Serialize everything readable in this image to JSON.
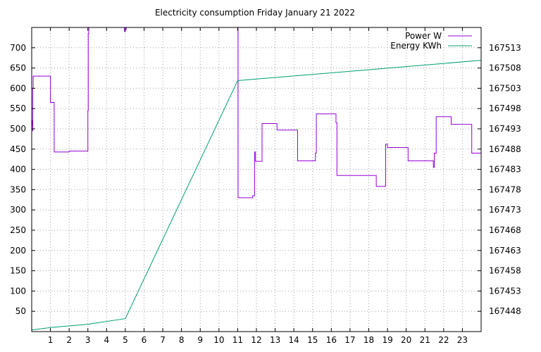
{
  "chart_data": {
    "type": "line",
    "title": "Electricity consumption Friday January 21 2022",
    "xlabel": "",
    "ylabel": "",
    "y2label": "",
    "xlim": [
      0,
      24
    ],
    "ylim": [
      0,
      750
    ],
    "y2lim": [
      167443,
      167518
    ],
    "grid": true,
    "legend_position": "top-right",
    "x_ticks": [
      1,
      2,
      3,
      4,
      5,
      6,
      7,
      8,
      9,
      10,
      11,
      12,
      13,
      14,
      15,
      16,
      17,
      18,
      19,
      20,
      21,
      22,
      23
    ],
    "x_tick_labels": [
      "1",
      "2",
      "3",
      "4",
      "5",
      "6",
      "7",
      "8",
      "9",
      "10",
      "11",
      "12",
      "13",
      "14",
      "15",
      "16",
      "17",
      "18",
      "19",
      "20",
      "21",
      "22",
      "23"
    ],
    "y_ticks": [
      50,
      100,
      150,
      200,
      250,
      300,
      350,
      400,
      450,
      500,
      550,
      600,
      650,
      700
    ],
    "y_tick_labels": [
      "50",
      "100",
      "150",
      "200",
      "250",
      "300",
      "350",
      "400",
      "450",
      "500",
      "550",
      "600",
      "650",
      "700"
    ],
    "y2_ticks": [
      167448,
      167453,
      167458,
      167463,
      167468,
      167473,
      167478,
      167483,
      167488,
      167493,
      167498,
      167503,
      167508,
      167513
    ],
    "y2_tick_labels": [
      "167448",
      "167453",
      "167458",
      "167463",
      "167468",
      "167473",
      "167478",
      "167483",
      "167488",
      "167493",
      "167498",
      "167503",
      "167508",
      "167513"
    ],
    "series": [
      {
        "name": "Power W",
        "axis": "y",
        "color": "#9400d3",
        "step": true,
        "x": [
          0,
          0.04,
          0.05,
          0.06,
          0.08,
          0.1,
          0.95,
          1.0,
          1.2,
          1.95,
          2.0,
          2.98,
          3.0,
          3.02,
          3.05,
          3.07,
          4.95,
          5.0,
          5.05,
          11.0,
          11.02,
          11.05,
          11.7,
          11.8,
          11.9,
          11.95,
          12.2,
          12.3,
          13.0,
          13.1,
          14.1,
          14.2,
          15.1,
          15.15,
          15.2,
          16.2,
          16.25,
          16.3,
          17.5,
          17.6,
          18.4,
          18.5,
          18.9,
          19.0,
          20.0,
          20.1,
          21.2,
          21.3,
          21.45,
          21.5,
          21.6,
          22.3,
          22.4,
          23.4,
          23.5,
          23.99
        ],
        "y": [
          520,
          510,
          495,
          600,
          630,
          630,
          630,
          565,
          443,
          443,
          445,
          445,
          545,
          735,
          750,
          750,
          740,
          745,
          750,
          750,
          330,
          330,
          330,
          335,
          443,
          420,
          420,
          513,
          513,
          497,
          497,
          421,
          421,
          440,
          537,
          537,
          515,
          385,
          385,
          385,
          358,
          358,
          462,
          454,
          454,
          421,
          421,
          421,
          405,
          440,
          530,
          530,
          511,
          511,
          440,
          440
        ]
      },
      {
        "name": "Energy KWh",
        "axis": "y2",
        "color": "#009e73",
        "step": false,
        "x": [
          0,
          1,
          3,
          5,
          11,
          16,
          24
        ],
        "y": [
          167443.4,
          167444.0,
          167444.8,
          167446.2,
          167504.9,
          167506.8,
          167509.9
        ]
      }
    ]
  }
}
